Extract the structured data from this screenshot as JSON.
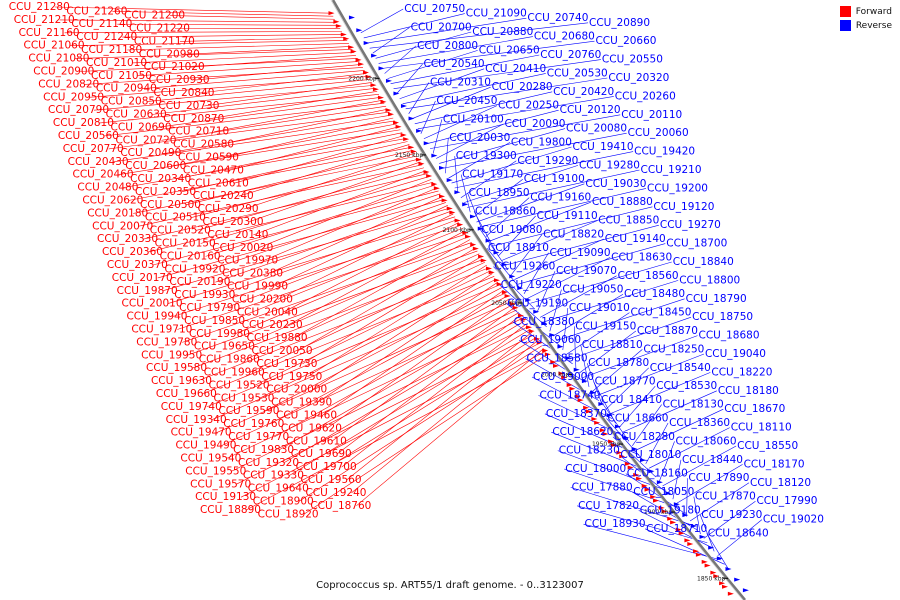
{
  "legend": {
    "forward": {
      "label": "Forward",
      "color": "#ff0000"
    },
    "reverse": {
      "label": "Reverse",
      "color": "#0000ff"
    }
  },
  "caption": "Coprococcus sp. ART55/1 draft genome. - 0..3123007",
  "ticks": [
    "2200 kbp",
    "2150 kbp",
    "2100 kbp",
    "2050 kbp",
    "2000 kbp",
    "1950 kbp",
    "1900 kbp",
    "1850 kbp"
  ],
  "forward_labels": [
    "CCU_21280",
    "CCU_21260",
    "CCU_21200",
    "CCU_21210",
    "CCU_21140",
    "CCU_21220",
    "CCU_21160",
    "CCU_21240",
    "CCU_21170",
    "CCU_21060",
    "CCU_21180",
    "CCU_20980",
    "CCU_21080",
    "CCU_21010",
    "CCU_21020",
    "CCU_20900",
    "CCU_21050",
    "CCU_20930",
    "CCU_20820",
    "CCU_20940",
    "CCU_20840",
    "CCU_20950",
    "CCU_20850",
    "CCU_20730",
    "CCU_20790",
    "CCU_20630",
    "CCU_20870",
    "CCU_20810",
    "CCU_20690",
    "CCU_20710",
    "CCU_20560",
    "CCU_20720",
    "CCU_20580",
    "CCU_20770",
    "CCU_20490",
    "CCU_20590",
    "CCU_20430",
    "CCU_20600",
    "CCU_20470",
    "CCU_20460",
    "CCU_20340",
    "CCU_20610",
    "CCU_20480",
    "CCU_20350",
    "CCU_20240",
    "CCU_20620",
    "CCU_20500",
    "CCU_20290",
    "CCU_20180",
    "CCU_20510",
    "CCU_20300",
    "CCU_20070",
    "CCU_20520",
    "CCU_20140",
    "CCU_20330",
    "CCU_20150",
    "CCU_20020",
    "CCU_20360",
    "CCU_20160",
    "CCU_19970",
    "CCU_20370",
    "CCU_19920",
    "CCU_20380",
    "CCU_20170",
    "CCU_20190",
    "CCU_19990",
    "CCU_19870",
    "CCU_19930",
    "CCU_20200",
    "CCU_20010",
    "CCU_19790",
    "CCU_20040",
    "CCU_19940",
    "CCU_19850",
    "CCU_20230",
    "CCU_19710",
    "CCU_19980",
    "CCU_19880",
    "CCU_19780",
    "CCU_19650",
    "CCU_20050",
    "CCU_19950",
    "CCU_19860",
    "CCU_19730",
    "CCU_19580",
    "CCU_19960",
    "CCU_19750",
    "CCU_19630",
    "CCU_19520",
    "CCU_20000",
    "CCU_19660",
    "CCU_19530",
    "CCU_19390",
    "CCU_19740",
    "CCU_19590",
    "CCU_19460",
    "CCU_19340",
    "CCU_19760",
    "CCU_19620",
    "CCU_19470",
    "CCU_19770",
    "CCU_19610",
    "CCU_19490",
    "CCU_19830",
    "CCU_19690",
    "CCU_19540",
    "CCU_19320",
    "CCU_19700",
    "CCU_19550",
    "CCU_19330",
    "CCU_19560",
    "CCU_19570",
    "CCU_19640",
    "CCU_19240",
    "CCU_19130",
    "CCU_18900",
    "CCU_18760",
    "CCU_18890",
    "CCU_18920"
  ],
  "reverse_labels": [
    "CCU_20750",
    "CCU_21090",
    "CCU_20740",
    "CCU_20890",
    "CCU_20700",
    "CCU_20880",
    "CCU_20680",
    "CCU_20660",
    "CCU_20800",
    "CCU_20650",
    "CCU_20760",
    "CCU_20550",
    "CCU_20540",
    "CCU_20410",
    "CCU_20530",
    "CCU_20320",
    "CCU_20310",
    "CCU_20280",
    "CCU_20420",
    "CCU_20260",
    "CCU_20450",
    "CCU_20250",
    "CCU_20120",
    "CCU_20110",
    "CCU_20100",
    "CCU_20090",
    "CCU_20080",
    "CCU_20060",
    "CCU_20030",
    "CCU_19800",
    "CCU_19410",
    "CCU_19420",
    "CCU_19300",
    "CCU_19290",
    "CCU_19280",
    "CCU_19210",
    "CCU_19170",
    "CCU_19100",
    "CCU_19030",
    "CCU_19200",
    "CCU_18950",
    "CCU_19160",
    "CCU_18880",
    "CCU_19120",
    "CCU_18860",
    "CCU_19110",
    "CCU_18850",
    "CCU_19270",
    "CCU_19080",
    "CCU_18820",
    "CCU_19140",
    "CCU_18700",
    "CCU_18910",
    "CCU_19090",
    "CCU_18630",
    "CCU_18840",
    "CCU_19260",
    "CCU_19070",
    "CCU_18560",
    "CCU_18800",
    "CCU_19220",
    "CCU_19050",
    "CCU_18480",
    "CCU_18790",
    "CCU_19190",
    "CCU_19010",
    "CCU_18450",
    "CCU_18750",
    "CCU_18380",
    "CCU_19150",
    "CCU_18870",
    "CCU_18680",
    "CCU_19060",
    "CCU_18810",
    "CCU_18250",
    "CCU_19040",
    "CCU_18580",
    "CCU_18780",
    "CCU_18540",
    "CCU_18220",
    "CCU_19000",
    "CCU_18770",
    "CCU_18530",
    "CCU_18180",
    "CCU_18740",
    "CCU_18410",
    "CCU_18130",
    "CCU_18670",
    "CCU_18370",
    "CCU_18660",
    "CCU_18360",
    "CCU_18110",
    "CCU_18620",
    "CCU_18280",
    "CCU_18060",
    "CCU_18550",
    "CCU_18230",
    "CCU_18010",
    "CCU_18440",
    "CCU_18170",
    "CCU_18000",
    "CCU_18160",
    "CCU_17890",
    "CCU_18120",
    "CCU_17880",
    "CCU_18050",
    "CCU_17870",
    "CCU_17990",
    "CCU_17820",
    "CCU_19180",
    "CCU_19230",
    "CCU_19020",
    "CCU_18930",
    "CCU_18710",
    "CCU_18640"
  ]
}
